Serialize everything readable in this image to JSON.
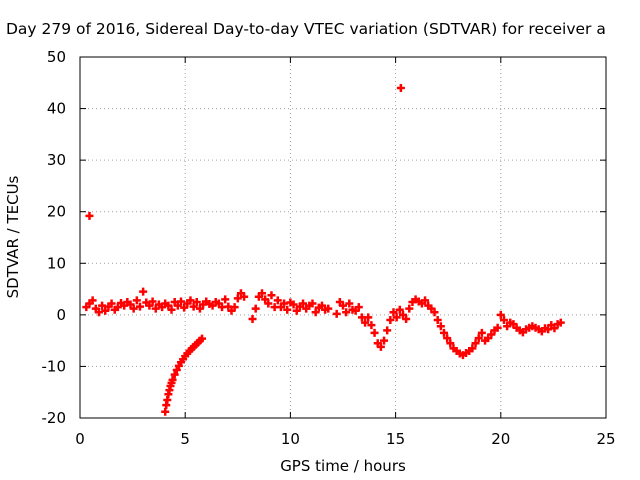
{
  "chart_data": {
    "type": "scatter",
    "title": "Day 279 of 2016, Sidereal Day-to-day VTEC variation (SDTVAR) for receiver a",
    "xlabel": "GPS time / hours",
    "ylabel": "SDTVAR / TECUs",
    "xlim": [
      0,
      25
    ],
    "ylim": [
      -20,
      50
    ],
    "xticks": [
      "0",
      "5",
      "10",
      "15",
      "20",
      "25"
    ],
    "yticks": [
      "-20",
      "-10",
      "0",
      "10",
      "20",
      "30",
      "40",
      "50"
    ],
    "grid": true,
    "legend": "none",
    "marker": "plus",
    "color": "#ff0000",
    "series": [
      {
        "x": [
          0.3,
          0.45,
          0.6,
          0.75,
          0.9,
          1.05,
          1.2,
          1.35,
          1.5,
          1.65,
          1.8,
          1.95,
          2.1,
          2.25,
          2.4,
          2.55,
          2.7,
          2.85,
          3.0,
          3.15,
          3.3,
          3.45,
          3.6,
          3.75,
          3.9,
          4.05,
          4.2,
          4.35,
          4.5,
          4.65,
          4.8,
          4.95,
          5.1,
          5.25,
          5.4,
          5.55,
          5.7,
          5.85,
          6.0,
          6.15,
          6.3,
          6.45,
          6.6,
          6.75,
          6.9,
          7.05,
          7.2,
          7.35,
          7.5,
          7.65,
          7.8,
          8.2,
          8.35,
          8.5,
          8.65,
          8.8,
          8.95,
          9.1,
          9.25,
          9.4,
          9.55,
          9.7,
          9.85,
          10.0,
          10.15,
          10.3,
          10.45,
          10.6,
          10.75,
          10.9,
          11.05,
          11.2,
          11.35,
          11.5,
          11.65,
          11.8,
          12.2,
          12.35,
          12.5,
          12.65,
          12.8,
          12.95,
          13.1,
          13.25,
          13.4,
          13.55,
          13.7,
          13.85,
          14.0,
          14.15,
          14.3,
          14.45,
          14.6,
          14.75,
          14.9,
          15.05,
          15.2,
          15.35,
          15.5,
          15.65,
          15.8,
          15.95,
          16.1,
          16.25,
          16.4,
          16.55,
          16.7,
          16.85,
          17.0,
          17.15,
          17.3,
          17.45,
          17.6,
          17.75,
          17.9,
          18.05,
          18.2,
          18.35,
          18.5,
          18.65,
          18.8,
          18.95,
          19.1,
          19.25,
          19.4,
          19.55,
          19.7,
          19.85,
          20.0,
          20.15,
          20.3,
          20.45,
          20.6,
          20.75,
          20.9,
          21.05,
          21.2,
          21.35,
          21.5,
          21.65,
          21.8,
          21.95,
          22.1,
          22.25,
          22.4,
          22.55,
          22.7,
          22.85
        ],
        "y": [
          1.5,
          2.2,
          2.8,
          1.2,
          0.5,
          1.8,
          0.8,
          1.6,
          2.2,
          1.0,
          1.5,
          2.3,
          1.8,
          2.5,
          2.0,
          1.2,
          2.8,
          1.6,
          4.5,
          2.4,
          1.8,
          2.6,
          1.2,
          2.0,
          1.5,
          2.2,
          1.8,
          1.0,
          2.5,
          1.8,
          2.6,
          1.4,
          2.2,
          2.8,
          1.6,
          2.5,
          1.2,
          2.0,
          2.6,
          2.1,
          1.8,
          2.5,
          2.2,
          1.5,
          3.0,
          1.6,
          0.8,
          1.5,
          3.2,
          4.2,
          3.5,
          -0.8,
          1.2,
          3.5,
          4.2,
          3.0,
          2.2,
          3.8,
          1.5,
          2.8,
          1.5,
          2.2,
          1.0,
          2.4,
          2.0,
          0.8,
          1.6,
          2.2,
          1.2,
          1.8,
          2.2,
          0.5,
          1.4,
          1.8,
          1.0,
          1.2,
          0.2,
          2.5,
          1.8,
          0.5,
          2.2,
          1.0,
          0.8,
          1.5,
          -0.5,
          -1.5,
          -0.5,
          -2.0,
          -3.5,
          -5.5,
          -6.2,
          -5.0,
          -3.0,
          -1.0,
          0.5,
          -0.5,
          1.0,
          0.0,
          -0.8,
          1.2,
          2.5,
          3.0,
          2.6,
          2.2,
          2.8,
          1.8,
          1.2,
          0.5,
          -1.0,
          -2.2,
          -3.5,
          -4.5,
          -5.5,
          -6.5,
          -7.0,
          -7.5,
          -7.8,
          -7.4,
          -7.0,
          -6.5,
          -5.5,
          -4.5,
          -3.5,
          -5.0,
          -4.5,
          -3.8,
          -3.0,
          -2.5,
          0.0,
          -1.0,
          -2.2,
          -1.5,
          -1.8,
          -2.5,
          -3.0,
          -3.4,
          -2.8,
          -2.5,
          -2.2,
          -2.5,
          -2.8,
          -3.2,
          -2.6,
          -2.8,
          -2.0,
          -2.6,
          -1.8,
          -1.5
        ]
      },
      {
        "x": [
          4.05,
          4.1,
          4.15,
          4.2,
          4.25,
          4.3,
          4.35,
          4.4,
          4.5,
          4.6,
          4.7,
          4.8,
          4.9,
          5.0,
          5.1,
          5.2,
          5.3,
          5.4,
          5.5,
          5.6,
          5.7,
          5.8
        ],
        "y": [
          -18.8,
          -17.5,
          -16.5,
          -15.4,
          -14.6,
          -13.8,
          -13.2,
          -12.6,
          -11.6,
          -10.7,
          -9.9,
          -9.2,
          -8.6,
          -8.0,
          -7.5,
          -7.0,
          -6.6,
          -6.2,
          -5.8,
          -5.4,
          -5.0,
          -4.6
        ]
      },
      {
        "x": [
          0.45,
          15.25
        ],
        "y": [
          19.2,
          44.0
        ]
      }
    ]
  }
}
